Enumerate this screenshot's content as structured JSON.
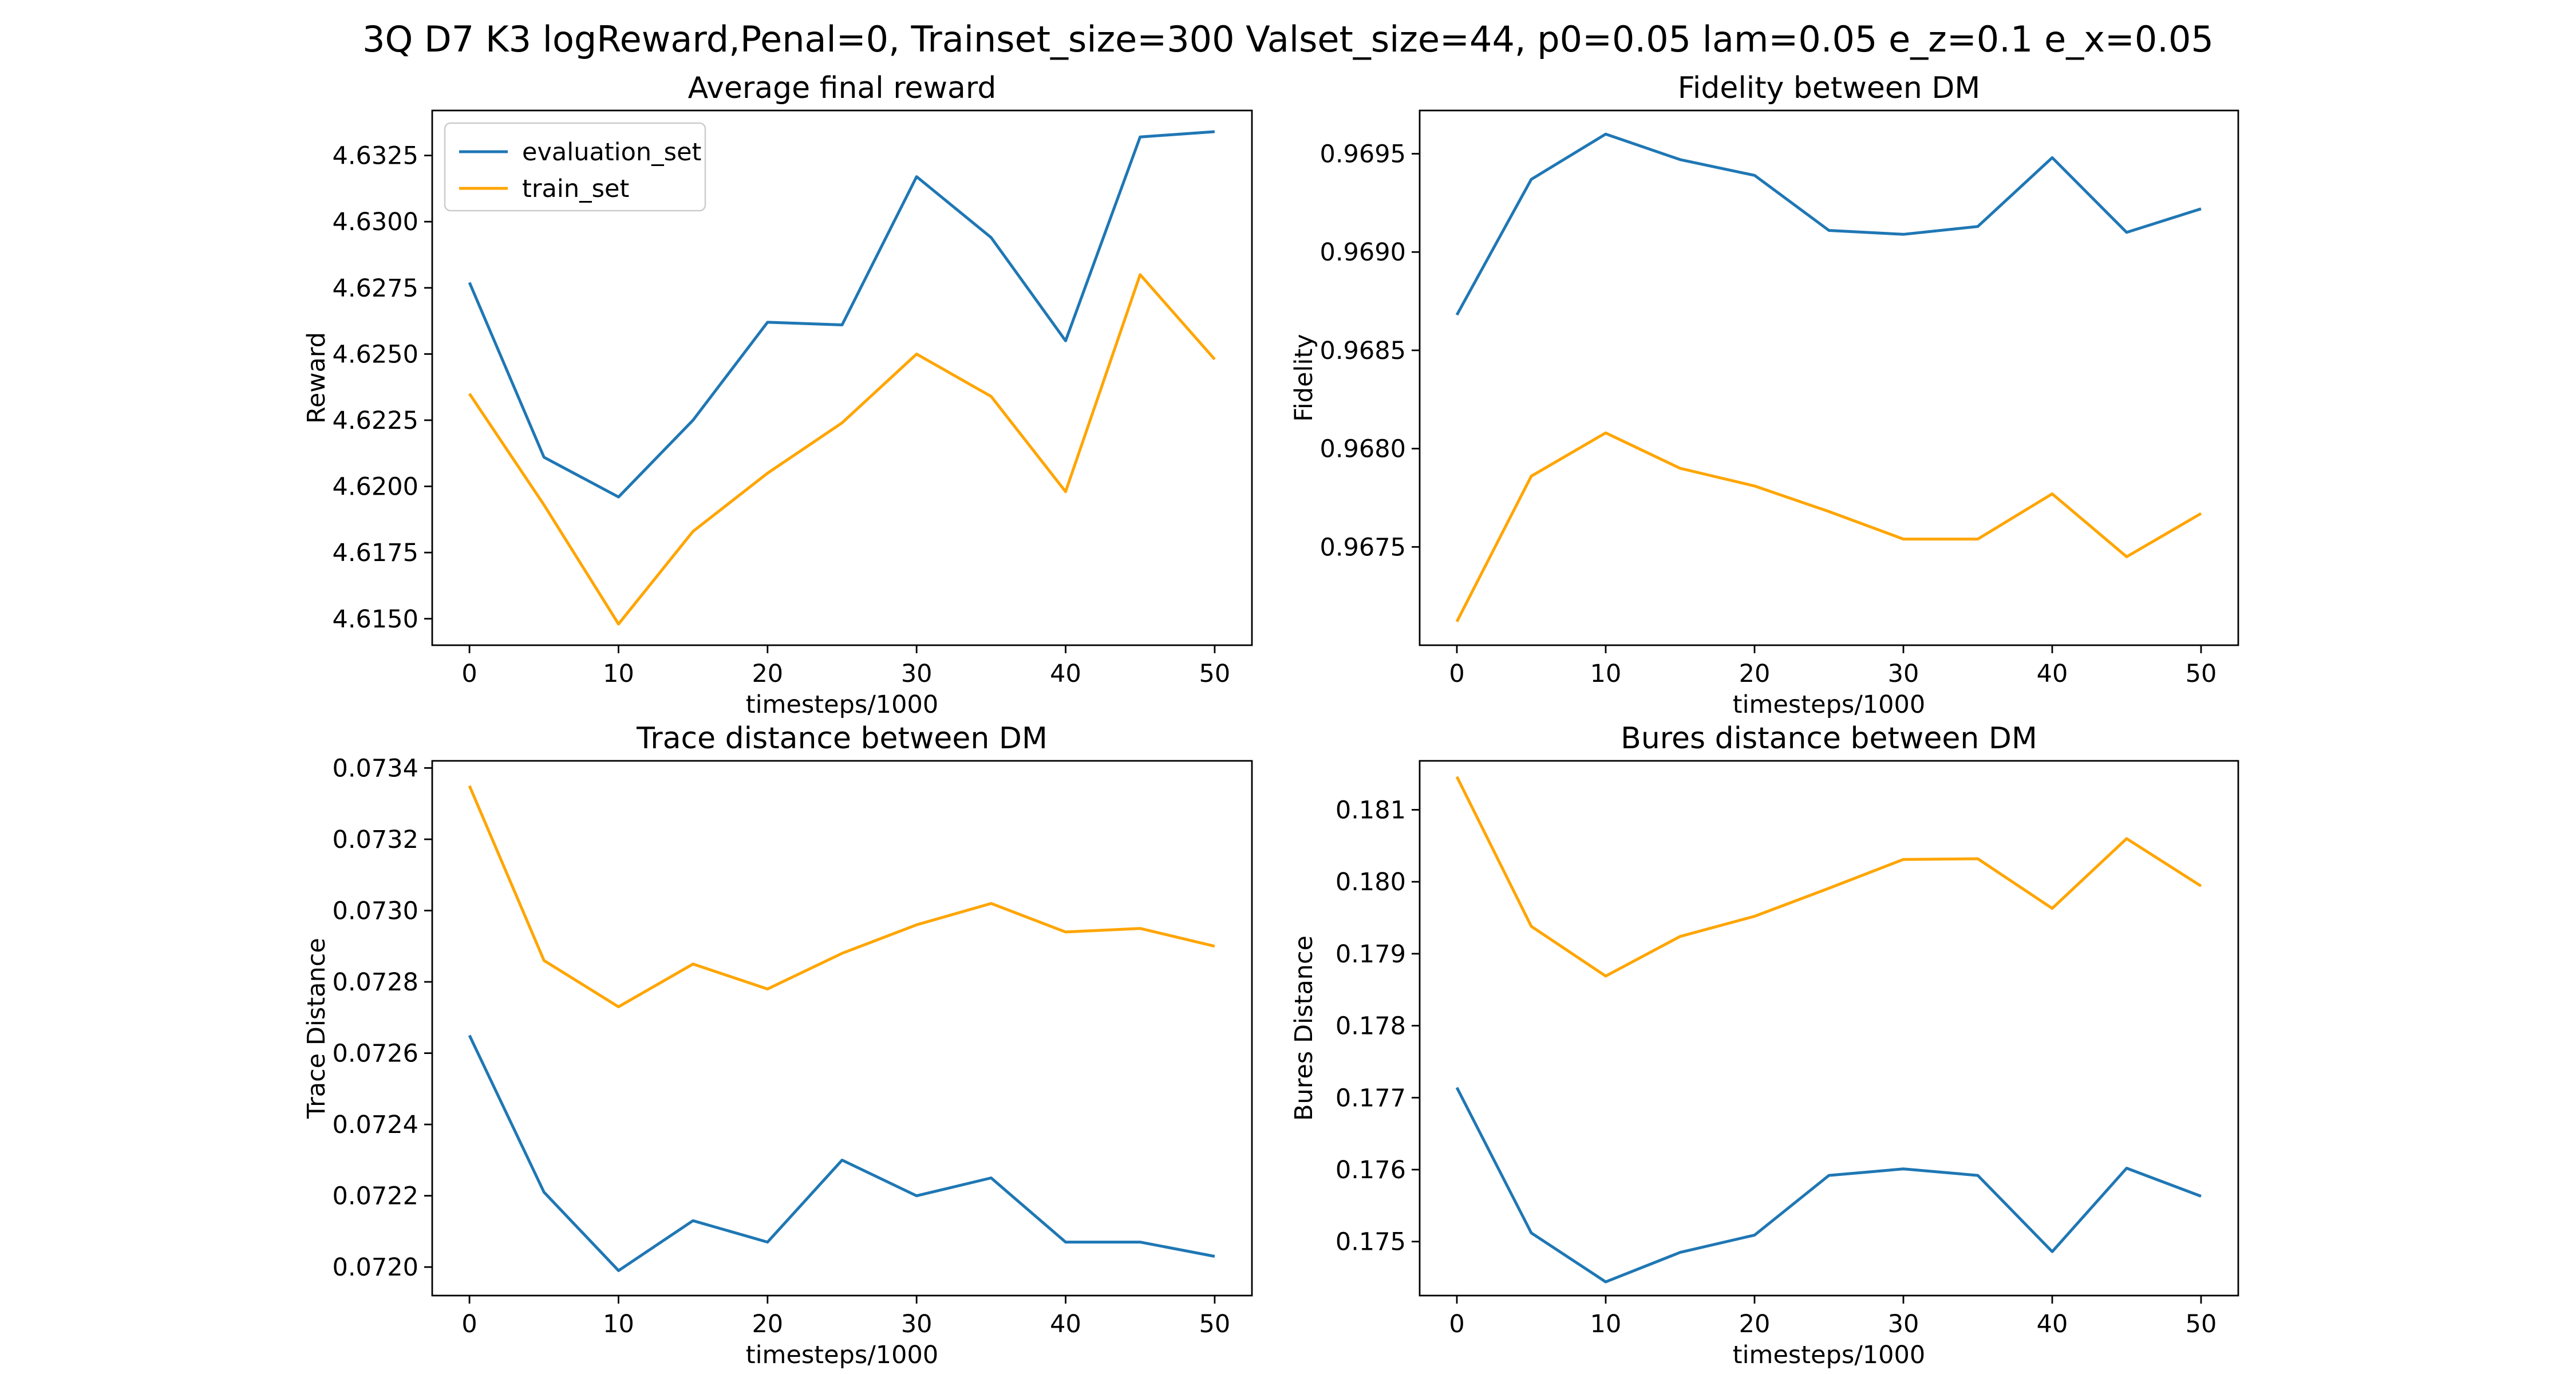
{
  "figure": {
    "suptitle": "3Q D7 K3 logReward,Penal=0, Trainset_size=300 Valset_size=44, p0=0.05 lam=0.05 e_z=0.1 e_x=0.05"
  },
  "colors": {
    "evaluation_set": "#1f77b4",
    "train_set": "#ffa500"
  },
  "chart_data": [
    {
      "type": "line",
      "title": "Average final reward",
      "xlabel": "timesteps/1000",
      "ylabel": "Reward",
      "x": [
        0,
        5,
        10,
        15,
        20,
        25,
        30,
        35,
        40,
        45,
        50
      ],
      "xticks": [
        0,
        10,
        20,
        30,
        40,
        50
      ],
      "xlim": [
        -2.5,
        52.5
      ],
      "ylim": [
        4.614,
        4.6342
      ],
      "yticks": [
        4.615,
        4.6175,
        4.62,
        4.6225,
        4.625,
        4.6275,
        4.63,
        4.6325
      ],
      "ytick_labels": [
        "4.6150",
        "4.6175",
        "4.6200",
        "4.6225",
        "4.6250",
        "4.6275",
        "4.6300",
        "4.6325"
      ],
      "legend": "top-left",
      "series": [
        {
          "name": "evaluation_set",
          "values": [
            4.6277,
            4.6211,
            4.6196,
            4.6225,
            4.6262,
            4.6261,
            4.6317,
            4.6294,
            4.6255,
            4.6332,
            4.6334
          ]
        },
        {
          "name": "train_set",
          "values": [
            4.6235,
            4.6193,
            4.6148,
            4.6183,
            4.6205,
            4.6224,
            4.625,
            4.6234,
            4.6198,
            4.628,
            4.6248
          ]
        }
      ]
    },
    {
      "type": "line",
      "title": "Fidelity between DM",
      "xlabel": "timesteps/1000",
      "ylabel": "Fidelity",
      "x": [
        0,
        5,
        10,
        15,
        20,
        25,
        30,
        35,
        40,
        45,
        50
      ],
      "xticks": [
        0,
        10,
        20,
        30,
        40,
        50
      ],
      "xlim": [
        -2.5,
        52.5
      ],
      "ylim": [
        0.967,
        0.96972
      ],
      "yticks": [
        0.9675,
        0.968,
        0.9685,
        0.969,
        0.9695
      ],
      "ytick_labels": [
        "0.9675",
        "0.9680",
        "0.9685",
        "0.9690",
        "0.9695"
      ],
      "series": [
        {
          "name": "evaluation_set",
          "values": [
            0.96868,
            0.96937,
            0.9696,
            0.96947,
            0.96939,
            0.96911,
            0.96909,
            0.96913,
            0.96948,
            0.9691,
            0.96922
          ]
        },
        {
          "name": "train_set",
          "values": [
            0.96712,
            0.96786,
            0.96808,
            0.9679,
            0.96781,
            0.96768,
            0.96754,
            0.96754,
            0.96777,
            0.96745,
            0.96767
          ]
        }
      ]
    },
    {
      "type": "line",
      "title": "Trace distance between DM",
      "xlabel": "timesteps/1000",
      "ylabel": "Trace Distance",
      "x": [
        0,
        5,
        10,
        15,
        20,
        25,
        30,
        35,
        40,
        45,
        50
      ],
      "xticks": [
        0,
        10,
        20,
        30,
        40,
        50
      ],
      "xlim": [
        -2.5,
        52.5
      ],
      "ylim": [
        0.07192,
        0.07342
      ],
      "yticks": [
        0.072,
        0.0722,
        0.0724,
        0.0726,
        0.0728,
        0.073,
        0.0732,
        0.0734
      ],
      "ytick_labels": [
        "0.0720",
        "0.0722",
        "0.0724",
        "0.0726",
        "0.0728",
        "0.0730",
        "0.0732",
        "0.0734"
      ],
      "series": [
        {
          "name": "evaluation_set",
          "values": [
            0.07265,
            0.07221,
            0.07199,
            0.07213,
            0.07207,
            0.0723,
            0.0722,
            0.07225,
            0.07207,
            0.07207,
            0.07203
          ]
        },
        {
          "name": "train_set",
          "values": [
            0.07335,
            0.07286,
            0.07273,
            0.07285,
            0.07278,
            0.07288,
            0.07296,
            0.07302,
            0.07294,
            0.07295,
            0.0729
          ]
        }
      ]
    },
    {
      "type": "line",
      "title": "Bures distance between DM",
      "xlabel": "timesteps/1000",
      "ylabel": "Bures Distance",
      "x": [
        0,
        5,
        10,
        15,
        20,
        25,
        30,
        35,
        40,
        45,
        50
      ],
      "xticks": [
        0,
        10,
        20,
        30,
        40,
        50
      ],
      "xlim": [
        -2.5,
        52.5
      ],
      "ylim": [
        0.17425,
        0.18168
      ],
      "yticks": [
        0.175,
        0.176,
        0.177,
        0.178,
        0.179,
        0.18,
        0.181
      ],
      "ytick_labels": [
        "0.175",
        "0.176",
        "0.177",
        "0.178",
        "0.179",
        "0.180",
        "0.181"
      ],
      "series": [
        {
          "name": "evaluation_set",
          "values": [
            0.17714,
            0.17512,
            0.17444,
            0.17485,
            0.17509,
            0.17592,
            0.17601,
            0.17592,
            0.17486,
            0.17602,
            0.17563
          ]
        },
        {
          "name": "train_set",
          "values": [
            0.18146,
            0.17938,
            0.17869,
            0.17924,
            0.17952,
            0.17991,
            0.18031,
            0.18032,
            0.17963,
            0.1806,
            0.17994
          ]
        }
      ]
    }
  ]
}
